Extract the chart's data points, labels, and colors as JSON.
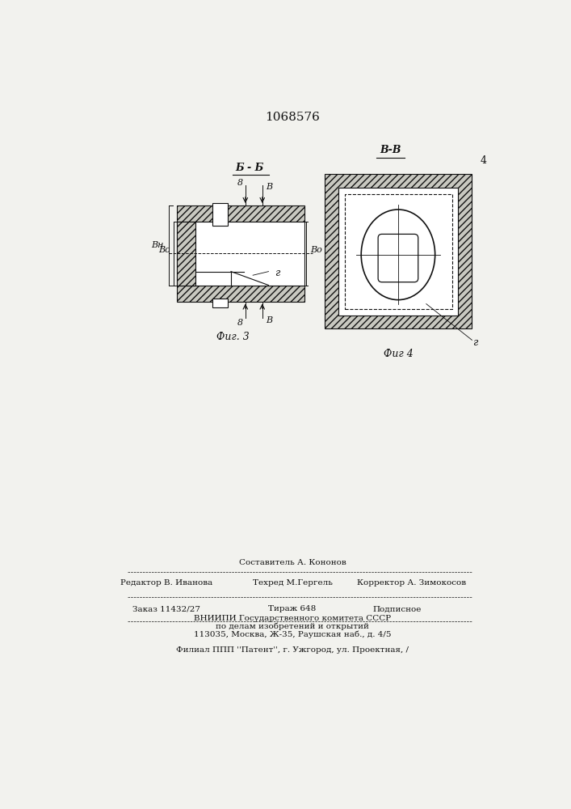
{
  "title": "1068576",
  "fig3_label": "Фиг. 3",
  "fig4_label": "Фиг 4",
  "section_label_bb_top": "Б - Б",
  "section_label_vv": "В-В",
  "label_8_top": "8",
  "label_B_top": "В",
  "label_8_bot": "8",
  "label_B_bot": "В",
  "label_Bn": "Вн",
  "label_Bc": "Вс",
  "label_Bo_right": "Во",
  "label_r_fig3": "г",
  "label_r_fig4": "г",
  "label_4": "4",
  "footer_line1": "Составитель А. Кононов",
  "footer_line2_left": "Редактор В. Иванова",
  "footer_line2_mid": "Техред М.Гергель",
  "footer_line2_right": "Корректор А. Зимокосов",
  "footer_line3_left": "Заказ 11432/27",
  "footer_line3_mid": "Тираж 648",
  "footer_line3_right": "Подписное",
  "footer_line4": "ВНИИПИ Государственного комитета СССР",
  "footer_line5": "по делам изобретений и открытий",
  "footer_line6": "113035, Москва, Ж-35, Раушская наб., д. 4/5",
  "footer_line7": "Филиал ППП ''Патент'', г. Ужгород, ул. Проектная, /",
  "bg_color": "#f2f2ee",
  "line_color": "#111111",
  "hatch_fc": "#c8c8c0"
}
